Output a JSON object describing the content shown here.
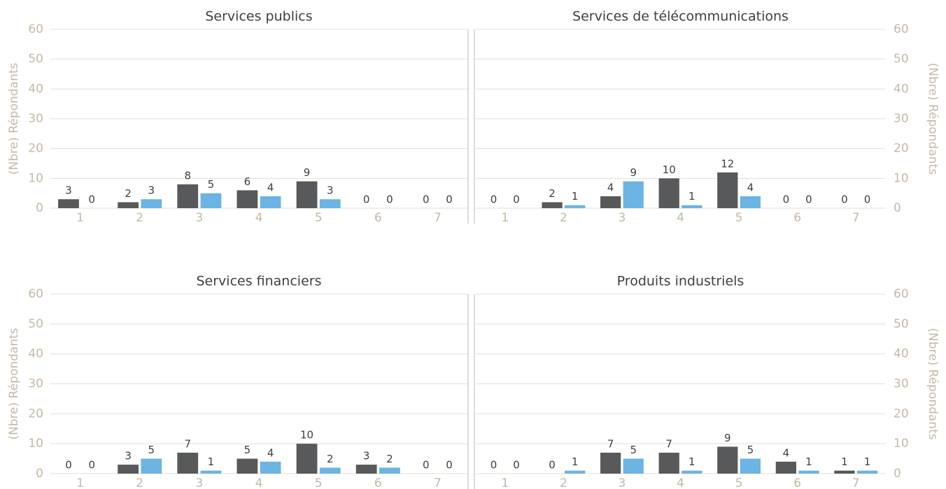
{
  "chart_data": [
    {
      "type": "bar",
      "title": "Services publics",
      "ylabel": "(Nbre) Répondants",
      "yaxis_side": "left",
      "categories": [
        "1",
        "2",
        "3",
        "4",
        "5",
        "6",
        "7"
      ],
      "series": [
        {
          "color": "#58595b",
          "values": [
            3,
            2,
            8,
            6,
            9,
            0,
            0
          ]
        },
        {
          "color": "#6cb4e4",
          "values": [
            0,
            3,
            5,
            4,
            3,
            0,
            0
          ]
        }
      ],
      "ylim": [
        0,
        60
      ],
      "yticks": [
        0,
        10,
        20,
        30,
        40,
        50,
        60
      ],
      "grid": true
    },
    {
      "type": "bar",
      "title": "Services de télécommunications",
      "ylabel": "(Nbre) Répondants",
      "yaxis_side": "right",
      "categories": [
        "1",
        "2",
        "3",
        "4",
        "5",
        "6",
        "7"
      ],
      "series": [
        {
          "color": "#58595b",
          "values": [
            0,
            2,
            4,
            10,
            12,
            0,
            0
          ]
        },
        {
          "color": "#6cb4e4",
          "values": [
            0,
            1,
            9,
            1,
            4,
            0,
            0
          ]
        }
      ],
      "ylim": [
        0,
        60
      ],
      "yticks": [
        0,
        10,
        20,
        30,
        40,
        50,
        60
      ],
      "grid": true
    },
    {
      "type": "bar",
      "title": "Services financiers",
      "ylabel": "(Nbre) Répondants",
      "yaxis_side": "left",
      "categories": [
        "1",
        "2",
        "3",
        "4",
        "5",
        "6",
        "7"
      ],
      "series": [
        {
          "color": "#58595b",
          "values": [
            0,
            3,
            7,
            5,
            10,
            3,
            0
          ]
        },
        {
          "color": "#6cb4e4",
          "values": [
            0,
            5,
            1,
            4,
            2,
            2,
            0
          ]
        }
      ],
      "ylim": [
        0,
        60
      ],
      "yticks": [
        0,
        10,
        20,
        30,
        40,
        50,
        60
      ],
      "grid": true
    },
    {
      "type": "bar",
      "title": "Produits industriels",
      "ylabel": "(Nbre) Répondants",
      "yaxis_side": "right",
      "categories": [
        "1",
        "2",
        "3",
        "4",
        "5",
        "6",
        "7"
      ],
      "series": [
        {
          "color": "#58595b",
          "values": [
            0,
            0,
            7,
            7,
            9,
            4,
            1
          ]
        },
        {
          "color": "#6cb4e4",
          "values": [
            0,
            1,
            5,
            1,
            5,
            1,
            1
          ]
        }
      ],
      "ylim": [
        0,
        60
      ],
      "yticks": [
        0,
        10,
        20,
        30,
        40,
        50,
        60
      ],
      "grid": true
    }
  ]
}
